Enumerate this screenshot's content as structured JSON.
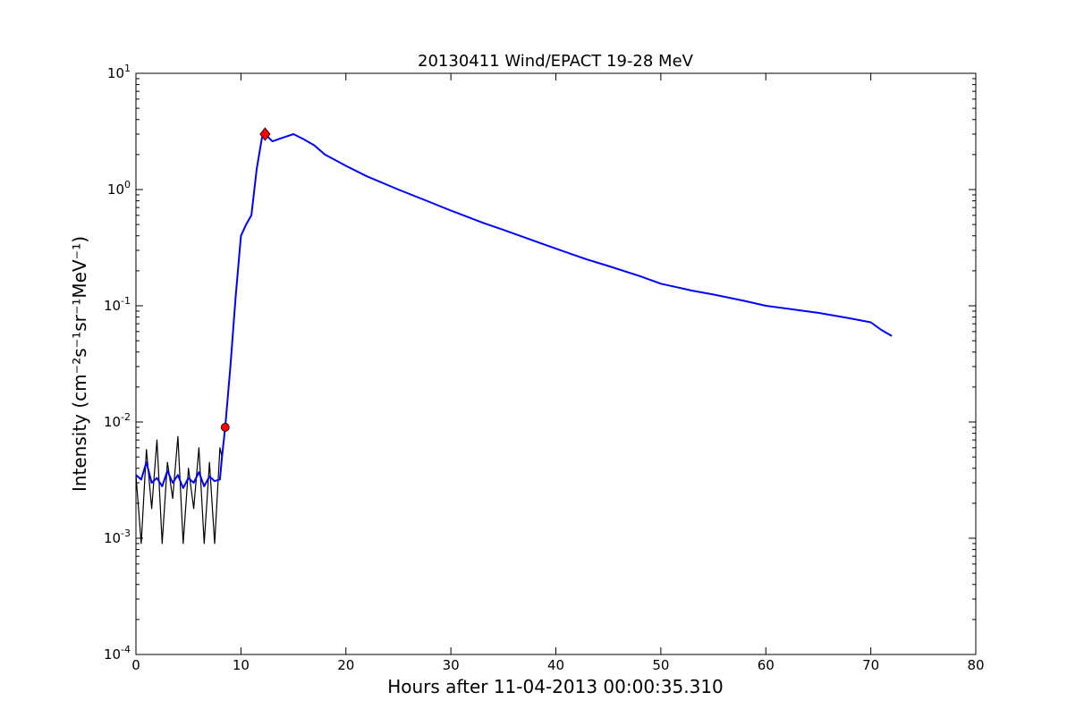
{
  "chart_data": {
    "type": "line",
    "title": "20130411 Wind/EPACT 19-28 MeV",
    "xlabel": "Hours after 11-04-2013 00:00:35.310",
    "ylabel": "Intensity (cm⁻²s⁻¹sr⁻¹MeV⁻¹)",
    "xlim": [
      0,
      80
    ],
    "ylim": [
      0.0001,
      10
    ],
    "yscale": "log",
    "grid": false,
    "x_ticks": [
      0,
      10,
      20,
      30,
      40,
      50,
      60,
      70,
      80
    ],
    "x_tick_labels": [
      "0",
      "10",
      "20",
      "30",
      "40",
      "50",
      "60",
      "70",
      "80"
    ],
    "y_ticks": [
      {
        "value": 0.0001,
        "base": "10",
        "exp": "-4"
      },
      {
        "value": 0.001,
        "base": "10",
        "exp": "-3"
      },
      {
        "value": 0.01,
        "base": "10",
        "exp": "-2"
      },
      {
        "value": 0.1,
        "base": "10",
        "exp": "-1"
      },
      {
        "value": 1,
        "base": "10",
        "exp": "0"
      },
      {
        "value": 10,
        "base": "10",
        "exp": "1"
      }
    ],
    "series": [
      {
        "kind": "raw",
        "color": "#000000",
        "x": [
          0,
          0.5,
          1,
          1.5,
          2,
          2.5,
          3,
          3.5,
          4,
          4.5,
          5,
          5.5,
          6,
          6.5,
          7,
          7.5,
          8,
          8.2,
          8.5,
          9,
          9.5,
          10,
          10.5,
          11,
          11.5,
          12,
          12.3,
          13,
          14,
          15,
          16,
          17,
          18,
          20,
          22,
          25,
          28,
          30,
          33,
          35,
          38,
          40,
          43,
          45,
          48,
          50,
          53,
          55,
          58,
          60,
          63,
          65,
          68,
          70,
          71,
          72
        ],
        "y": [
          0.0035,
          0.0009,
          0.0058,
          0.0018,
          0.007,
          0.0009,
          0.0045,
          0.0022,
          0.0075,
          0.0009,
          0.004,
          0.0018,
          0.006,
          0.0009,
          0.0045,
          0.0009,
          0.006,
          0.005,
          0.009,
          0.03,
          0.12,
          0.4,
          0.5,
          0.6,
          1.5,
          2.8,
          3.0,
          2.6,
          2.8,
          3.0,
          2.7,
          2.4,
          2.0,
          1.6,
          1.3,
          1.0,
          0.78,
          0.66,
          0.52,
          0.45,
          0.36,
          0.31,
          0.25,
          0.22,
          0.18,
          0.155,
          0.135,
          0.125,
          0.11,
          0.1,
          0.092,
          0.087,
          0.078,
          0.072,
          0.062,
          0.055
        ]
      },
      {
        "kind": "smoothed",
        "color": "#0000ff",
        "x": [
          0,
          0.5,
          1,
          1.5,
          2,
          2.5,
          3,
          3.5,
          4,
          4.5,
          5,
          5.5,
          6,
          6.5,
          7,
          7.5,
          8,
          8.2,
          8.5,
          9,
          9.5,
          10,
          10.5,
          11,
          11.5,
          12,
          12.3,
          13,
          14,
          15,
          16,
          17,
          18,
          20,
          22,
          25,
          28,
          30,
          33,
          35,
          38,
          40,
          43,
          45,
          48,
          50,
          53,
          55,
          58,
          60,
          63,
          65,
          68,
          70,
          71,
          72
        ],
        "y": [
          0.0035,
          0.0032,
          0.0045,
          0.003,
          0.0033,
          0.0028,
          0.0038,
          0.003,
          0.0035,
          0.0027,
          0.0033,
          0.003,
          0.0037,
          0.0028,
          0.0034,
          0.0031,
          0.0032,
          0.005,
          0.009,
          0.03,
          0.12,
          0.4,
          0.5,
          0.6,
          1.5,
          2.8,
          3.0,
          2.6,
          2.8,
          3.0,
          2.7,
          2.4,
          2.0,
          1.6,
          1.3,
          1.0,
          0.78,
          0.66,
          0.52,
          0.45,
          0.36,
          0.31,
          0.25,
          0.22,
          0.18,
          0.155,
          0.135,
          0.125,
          0.11,
          0.1,
          0.092,
          0.087,
          0.078,
          0.072,
          0.062,
          0.055
        ]
      }
    ],
    "markers": [
      {
        "kind": "onset",
        "shape": "circle",
        "x": 8.5,
        "y": 0.009,
        "color": "#ff0000"
      },
      {
        "kind": "peak",
        "shape": "diamond",
        "x": 12.3,
        "y": 3.0,
        "color": "#ff0000"
      }
    ]
  }
}
